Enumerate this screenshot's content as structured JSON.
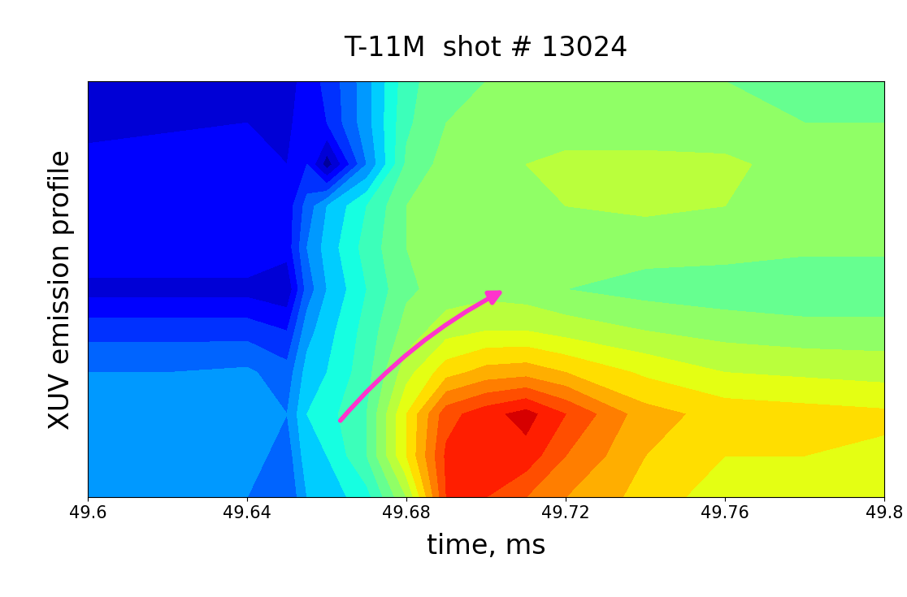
{
  "chart_data": {
    "type": "contour",
    "title": "T-11M  shot # 13024",
    "xlabel": "time, ms",
    "ylabel": "XUV emission profile",
    "color": "jet",
    "tick_labels": "x",
    "xlim": [
      49.6,
      49.8
    ],
    "xticks": [
      49.6,
      49.64,
      49.68,
      49.72,
      49.76,
      49.8
    ],
    "ylim": [
      0,
      1
    ],
    "zlim": [
      0,
      10
    ],
    "x": [
      49.6,
      49.62,
      49.64,
      49.65,
      49.655,
      49.66,
      49.67,
      49.68,
      49.69,
      49.7,
      49.71,
      49.72,
      49.74,
      49.76,
      49.78,
      49.8
    ],
    "y": [
      0.0,
      0.1,
      0.2,
      0.3,
      0.4,
      0.5,
      0.6,
      0.7,
      0.8,
      0.9,
      1.0
    ],
    "z": [
      [
        2.5,
        2.5,
        2.5,
        2.0,
        3.0,
        3.2,
        3.8,
        5.5,
        8.5,
        8.5,
        8.0,
        7.5,
        6.8,
        6.2,
        6.0,
        6.0
      ],
      [
        2.8,
        2.8,
        2.8,
        2.2,
        3.3,
        3.5,
        4.5,
        6.5,
        8.6,
        8.8,
        8.8,
        8.0,
        7.0,
        6.5,
        6.5,
        6.4
      ],
      [
        3.0,
        3.0,
        3.0,
        2.5,
        3.5,
        3.8,
        4.5,
        6.5,
        8.3,
        8.8,
        9.2,
        8.5,
        7.2,
        6.8,
        6.7,
        6.6
      ],
      [
        2.5,
        2.5,
        2.6,
        2.2,
        3.2,
        3.5,
        4.3,
        5.8,
        6.8,
        7.2,
        7.3,
        7.0,
        6.4,
        6.0,
        5.9,
        5.8
      ],
      [
        1.8,
        1.8,
        1.8,
        1.5,
        2.8,
        3.3,
        4.2,
        5.2,
        5.8,
        6.0,
        6.0,
        5.8,
        5.5,
        5.3,
        5.2,
        5.2
      ],
      [
        0.8,
        0.8,
        0.8,
        0.6,
        2.2,
        3.0,
        4.0,
        4.9,
        5.2,
        5.3,
        5.2,
        5.0,
        4.8,
        4.7,
        4.6,
        4.6
      ],
      [
        1.5,
        1.5,
        1.5,
        1.2,
        2.5,
        3.2,
        4.2,
        5.0,
        5.3,
        5.4,
        5.3,
        5.3,
        5.2,
        5.2,
        5.1,
        5.1
      ],
      [
        1.5,
        1.5,
        1.5,
        1.2,
        2.2,
        3.0,
        4.0,
        5.0,
        5.3,
        5.5,
        5.5,
        5.5,
        5.6,
        5.5,
        5.4,
        5.3
      ],
      [
        1.2,
        1.3,
        1.4,
        1.0,
        1.5,
        0.2,
        2.5,
        4.6,
        5.2,
        5.4,
        5.5,
        5.6,
        5.6,
        5.6,
        5.3,
        5.2
      ],
      [
        0.8,
        0.9,
        1.0,
        0.8,
        1.5,
        1.5,
        2.8,
        4.4,
        5.0,
        5.3,
        5.3,
        5.3,
        5.3,
        5.2,
        5.0,
        5.0
      ],
      [
        0.7,
        0.8,
        0.9,
        0.7,
        1.3,
        1.6,
        2.8,
        4.3,
        4.9,
        5.0,
        5.1,
        5.1,
        5.0,
        5.0,
        4.8,
        4.8
      ]
    ],
    "arrow": {
      "x": [
        49.663,
        49.705
      ],
      "y": [
        0.18,
        0.5
      ]
    }
  }
}
